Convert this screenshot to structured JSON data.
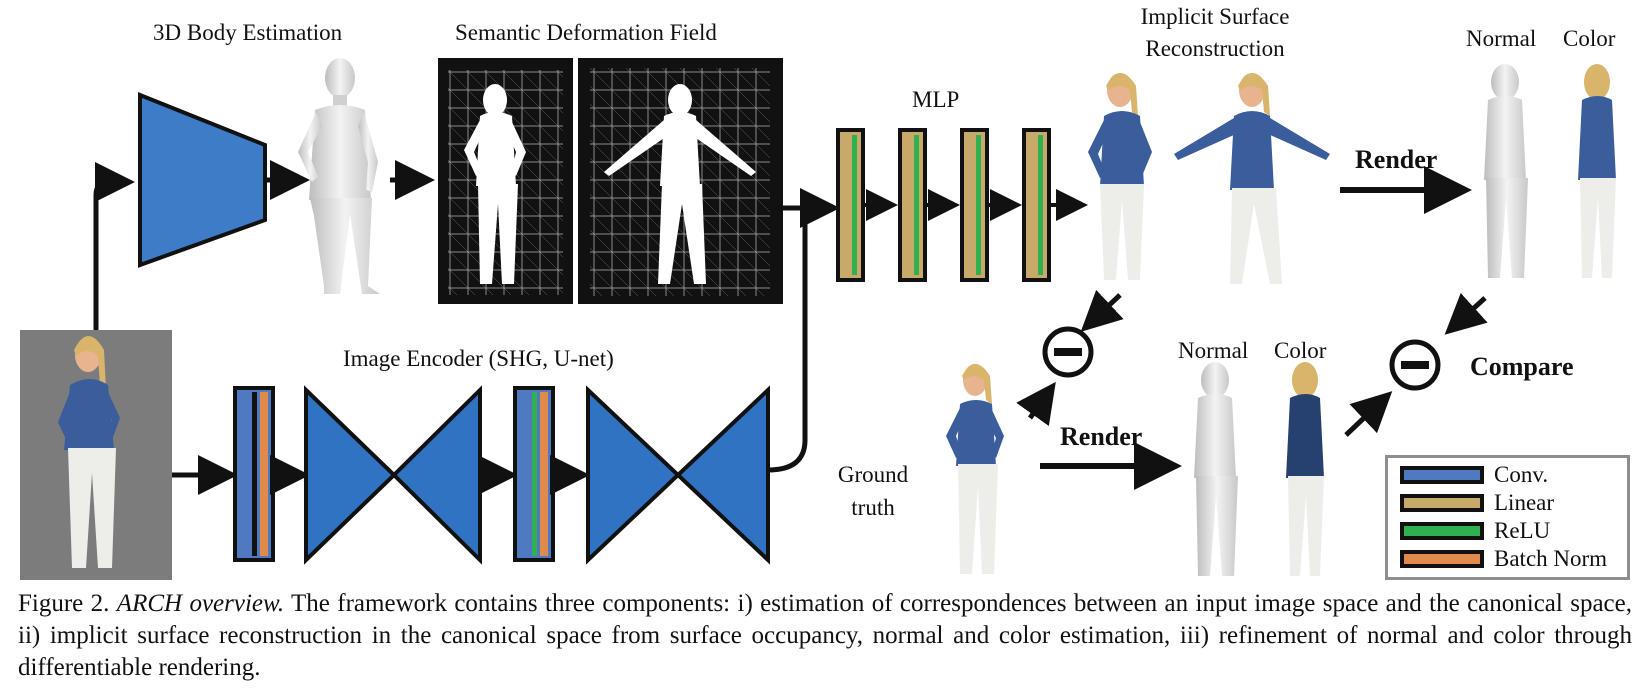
{
  "labels": {
    "body_estimation": "3D Body Estimation",
    "deformation_field": "Semantic Deformation Field",
    "mlp": "MLP",
    "implicit_line1": "Implicit Surface",
    "implicit_line2": "Reconstruction",
    "image_encoder": "Image Encoder (SHG, U-net)",
    "render_top": "Render",
    "render_bottom": "Render",
    "compare": "Compare",
    "normal_top": "Normal",
    "color_top": "Color",
    "normal_mid": "Normal",
    "color_mid": "Color",
    "ground_truth_line1": "Ground",
    "ground_truth_line2": "truth"
  },
  "legend": {
    "items": [
      {
        "label": "Conv.",
        "color": "#4f7ac1"
      },
      {
        "label": "Linear",
        "color": "#c9a96a"
      },
      {
        "label": "ReLU",
        "color": "#2fb14f"
      },
      {
        "label": "Batch Norm",
        "color": "#e08a4d"
      }
    ]
  },
  "caption": {
    "figure_no": "Figure 2.",
    "title": "ARCH overview.",
    "body": "The framework contains three components: i) estimation of correspondences between an input image space and the canonical space, ii) implicit surface reconstruction in the canonical space from surface occupancy, normal and color estimation, iii) refinement of normal and color through differentiable rendering."
  },
  "colors": {
    "conv": "#4f7ac1",
    "encoder_blue": "#2f73c2",
    "linear": "#c9a96a",
    "relu": "#2fb14f",
    "batchnorm": "#e08a4d",
    "denim": "#3a5d9c",
    "pants": "#ededea",
    "skin": "#e7b48f",
    "hair": "#d8b56a",
    "photo_bg": "#7c7c7c"
  }
}
